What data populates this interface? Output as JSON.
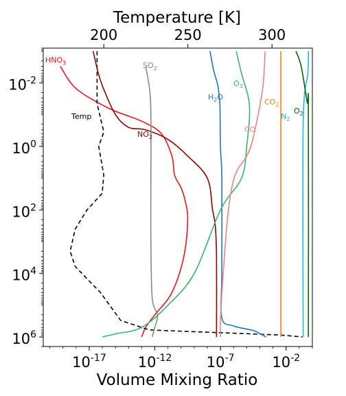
{
  "chart_data": {
    "type": "line",
    "title": "",
    "xlabel": "Volume Mixing Ratio",
    "x2label": "Temperature [K]",
    "ylabel": "",
    "x_scale": "log",
    "y_scale": "log",
    "y_inverted": true,
    "xlim": [
      3.16e-21,
      1.0
    ],
    "x2lim": [
      164,
      324
    ],
    "ylim": [
      2000000,
      0.0008
    ],
    "x_ticks": [
      {
        "value": 1e-17,
        "label": "10^-17"
      },
      {
        "value": 1e-12,
        "label": "10^-12"
      },
      {
        "value": 1e-07,
        "label": "10^-7"
      },
      {
        "value": 0.01,
        "label": "10^-2"
      }
    ],
    "x2_ticks": [
      {
        "value": 200,
        "label": "200"
      },
      {
        "value": 250,
        "label": "250"
      },
      {
        "value": 300,
        "label": "300"
      }
    ],
    "y_ticks": [
      {
        "value": 0.01,
        "label": "10^-2"
      },
      {
        "value": 1,
        "label": "10^0"
      },
      {
        "value": 100,
        "label": "10^2"
      },
      {
        "value": 10000,
        "label": "10^4"
      },
      {
        "value": 1000000,
        "label": "10^6"
      }
    ],
    "grid": false,
    "series": [
      {
        "name": "HNO3",
        "label_main": "HNO",
        "label_sub": "3",
        "color": "#e8141e",
        "dash": "solid",
        "axis": "vmr",
        "points": [
          [
            6.3e-20,
            0.003
          ],
          [
            1e-18,
            0.015
          ],
          [
            3.2e-16,
            0.063
          ],
          [
            1e-13,
            0.16
          ],
          [
            3.2e-12,
            0.4
          ],
          [
            2e-11,
            2
          ],
          [
            3.2e-11,
            8
          ],
          [
            1e-10,
            20
          ],
          [
            2e-10,
            50
          ],
          [
            3.2e-10,
            200
          ],
          [
            1.6e-10,
            3000
          ],
          [
            2e-11,
            40000
          ],
          [
            1e-12,
            200000
          ],
          [
            2e-13,
            500000
          ],
          [
            1e-13,
            1000000
          ]
        ]
      },
      {
        "name": "Temp",
        "label_main": "Temp",
        "label_sub": "",
        "color": "#000000",
        "dash": "dashed",
        "axis": "temp",
        "points": [
          [
            196,
            0.001
          ],
          [
            196,
            0.004
          ],
          [
            196,
            0.025
          ],
          [
            196,
            0.045
          ],
          [
            200,
            0.35
          ],
          [
            197,
            1
          ],
          [
            200,
            8
          ],
          [
            199,
            30
          ],
          [
            190,
            100
          ],
          [
            183,
            400
          ],
          [
            180,
            2000
          ],
          [
            183,
            6000
          ],
          [
            198,
            40000
          ],
          [
            210,
            300000
          ],
          [
            227,
            600000
          ],
          [
            305,
            870000
          ],
          [
            318,
            1000000
          ]
        ]
      },
      {
        "name": "NO2",
        "label_main": "NO",
        "label_sub": "2",
        "color": "#8b0000",
        "dash": "solid",
        "axis": "vmr",
        "points": [
          [
            2e-17,
            0.001
          ],
          [
            5e-17,
            0.005
          ],
          [
            1.3e-16,
            0.016
          ],
          [
            1e-15,
            0.1
          ],
          [
            1e-14,
            0.25
          ],
          [
            2e-13,
            0.3
          ],
          [
            1e-11,
            0.6
          ],
          [
            3.2e-10,
            2
          ],
          [
            1e-08,
            10
          ],
          [
            2.5e-08,
            100
          ],
          [
            4e-08,
            300
          ],
          [
            5e-08,
            3000
          ],
          [
            5e-08,
            1000000
          ]
        ]
      },
      {
        "name": "SO2",
        "label_main": "SO",
        "label_sub": "2",
        "color": "#888888",
        "dash": "solid",
        "axis": "vmr",
        "points": [
          [
            2e-13,
            0.003
          ],
          [
            4e-13,
            0.016
          ],
          [
            5e-13,
            0.1
          ],
          [
            5e-13,
            10
          ],
          [
            5e-13,
            1000
          ],
          [
            6.3e-13,
            60000
          ],
          [
            1.6e-12,
            200000
          ],
          [
            1e-12,
            500000
          ],
          [
            6.3e-13,
            1000000
          ]
        ]
      },
      {
        "name": "H2O",
        "label_main": "H",
        "label_sub": "2",
        "label_tail": "O",
        "color": "#1f77b4",
        "dash": "solid",
        "axis": "vmr",
        "points": [
          [
            1.6e-08,
            0.001
          ],
          [
            3e-08,
            0.004
          ],
          [
            6.3e-08,
            0.012
          ],
          [
            9e-08,
            0.05
          ],
          [
            1e-07,
            1
          ],
          [
            1.26e-07,
            10
          ],
          [
            1.26e-07,
            10000
          ],
          [
            1.26e-07,
            250000
          ],
          [
            1e-06,
            450000
          ],
          [
            3.2e-05,
            630000
          ],
          [
            0.0003,
            1000000
          ]
        ]
      },
      {
        "name": "O3",
        "label_main": "O",
        "label_sub": "3",
        "color": "#3cb371",
        "dash": "solid",
        "axis": "vmr",
        "points": [
          [
            1.6e-06,
            0.001
          ],
          [
            4e-06,
            0.005
          ],
          [
            1.6e-05,
            0.05
          ],
          [
            1e-05,
            1
          ],
          [
            4e-06,
            10
          ],
          [
            1e-07,
            100
          ],
          [
            1e-09,
            10000
          ],
          [
            1e-11,
            100000
          ],
          [
            1e-13,
            500000
          ],
          [
            1e-15,
            800000
          ],
          [
            1e-16,
            1000000
          ]
        ]
      },
      {
        "name": "CO",
        "label_main": "CO",
        "label_sub": "",
        "color": "#f08080",
        "dash": "solid",
        "axis": "vmr",
        "points": [
          [
            0.00025,
            0.001
          ],
          [
            0.00016,
            0.016
          ],
          [
            3.2e-05,
            0.5
          ],
          [
            1e-05,
            2
          ],
          [
            1.3e-06,
            8
          ],
          [
            4e-07,
            100
          ],
          [
            1.6e-07,
            10000
          ],
          [
            1e-07,
            300000
          ],
          [
            1e-07,
            1000000
          ]
        ]
      },
      {
        "name": "CO2",
        "label_main": "CO",
        "label_sub": "2",
        "color": "#ff7f0e",
        "dash": "solid",
        "axis": "vmr",
        "points": [
          [
            0.004,
            0.001
          ],
          [
            0.004,
            1000000
          ]
        ]
      },
      {
        "name": "N2",
        "label_main": "N",
        "label_sub": "2",
        "color": "#1eb4ee",
        "dash": "solid",
        "axis": "vmr",
        "points": [
          [
            0.5,
            0.001
          ],
          [
            0.45,
            0.005
          ],
          [
            0.2,
            0.2
          ],
          [
            0.2,
            1000000
          ]
        ]
      },
      {
        "name": "O2",
        "label_main": "O",
        "label_sub": "2",
        "color": "#006400",
        "dash": "solid",
        "axis": "vmr",
        "points": [
          [
            0.056,
            0.001
          ],
          [
            0.14,
            0.003
          ],
          [
            0.4,
            0.04
          ],
          [
            0.5,
            0.08
          ],
          [
            0.5,
            1000000
          ]
        ]
      }
    ]
  }
}
